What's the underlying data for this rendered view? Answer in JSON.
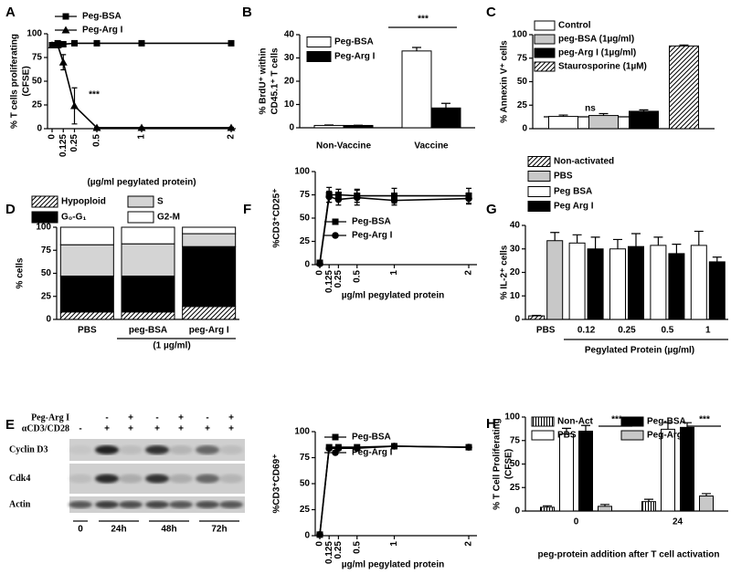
{
  "chart_data": [
    {
      "panel": "A",
      "type": "line",
      "ylabel": [
        "% T cells proliferating",
        "(CFSE)"
      ],
      "xlabel": "(µg/ml pegylated protein)",
      "x": [
        0,
        0.0625,
        0.125,
        0.25,
        0.5,
        1,
        2
      ],
      "xlim": [
        0,
        2
      ],
      "xticks": [
        0,
        0.125,
        0.25,
        0.5,
        1,
        2
      ],
      "ylim": [
        0,
        100
      ],
      "yticks": [
        0,
        25,
        50,
        75,
        100
      ],
      "series": [
        {
          "name": "Peg-BSA",
          "color": "#000000",
          "marker": "square",
          "values": [
            88,
            90,
            89,
            90,
            90,
            90,
            90
          ]
        },
        {
          "name": "Peg-Arg I",
          "color": "#000000",
          "marker": "triangle",
          "values": [
            88,
            88,
            70,
            24,
            1,
            1,
            1
          ],
          "errors": [
            1,
            1,
            8,
            19,
            0.5,
            0.5,
            0.5
          ]
        }
      ],
      "annotations": [
        "***"
      ]
    },
    {
      "panel": "B",
      "type": "bar",
      "ylabel": [
        "% BrdU⁺ within",
        "CD45.1⁺ T cells"
      ],
      "categories": [
        "Non-Vaccine",
        "Vaccine"
      ],
      "ylim": [
        0,
        40
      ],
      "yticks": [
        0,
        10,
        20,
        30,
        40
      ],
      "series": [
        {
          "name": "Peg-BSA",
          "color": "#ffffff",
          "values": [
            1,
            33
          ],
          "errors": [
            0.2,
            1.5
          ]
        },
        {
          "name": "Peg-Arg I",
          "color": "#000000",
          "values": [
            1,
            8.5
          ],
          "errors": [
            0.1,
            2
          ]
        }
      ],
      "annotations": [
        "***"
      ]
    },
    {
      "panel": "C",
      "type": "bar",
      "ylabel": [
        "% Annexin V⁺ cells"
      ],
      "categories": [
        null
      ],
      "ylim": [
        0,
        100
      ],
      "yticks": [
        0,
        25,
        50,
        75,
        100
      ],
      "series": [
        {
          "name": "Control",
          "color": "#ffffff",
          "values": [
            13
          ],
          "errors": [
            1.5
          ]
        },
        {
          "name": "peg-BSA (1µg/ml)",
          "color": "#c8c8c8",
          "values": [
            14
          ],
          "errors": [
            2
          ]
        },
        {
          "name": "peg-Arg I (1µg/ml)",
          "color": "#000000",
          "values": [
            18.5
          ],
          "errors": [
            1.5
          ]
        },
        {
          "name": "Staurosporine (1µM)",
          "color": "#ffffff",
          "hatch": "diag",
          "values": [
            88
          ],
          "errors": [
            1
          ]
        }
      ],
      "annotations": [
        "ns"
      ]
    },
    {
      "panel": "D",
      "type": "bar",
      "stacked": true,
      "ylabel": [
        "% cells"
      ],
      "categories": [
        "PBS",
        "peg-BSA",
        "peg-Arg I"
      ],
      "category_note": "(1 µg/ml)",
      "ylim": [
        0,
        100
      ],
      "yticks": [
        0,
        25,
        50,
        75,
        100
      ],
      "series": [
        {
          "name": "Hypoploid",
          "color": "#ffffff",
          "hatch": "diag",
          "values": [
            8,
            8,
            14
          ]
        },
        {
          "name": "G₀-G₁",
          "color": "#000000",
          "values": [
            39,
            39,
            65
          ]
        },
        {
          "name": "S",
          "color": "#d4d4d4",
          "values": [
            34,
            35,
            14
          ]
        },
        {
          "name": "G2-M",
          "color": "#ffffff",
          "values": [
            19,
            18,
            7
          ]
        }
      ]
    },
    {
      "panel": "F",
      "type": "line",
      "ylabel": [
        "%CD3⁺CD25⁺"
      ],
      "xlabel": "µg/ml pegylated protein",
      "x": [
        0,
        0.125,
        0.25,
        0.5,
        1,
        2
      ],
      "xlim": [
        0,
        2
      ],
      "xticks": [
        0,
        0.125,
        0.25,
        0.5,
        1,
        2
      ],
      "ylim": [
        0,
        100
      ],
      "yticks": [
        0,
        25,
        50,
        75,
        100
      ],
      "series": [
        {
          "name": "Peg-BSA",
          "color": "#000000",
          "marker": "square",
          "values": [
            2,
            75,
            75,
            74,
            74,
            74
          ],
          "errors": [
            1,
            8,
            6,
            7,
            8,
            8
          ]
        },
        {
          "name": "Peg-Arg I",
          "color": "#000000",
          "marker": "circle",
          "values": [
            1,
            73,
            70,
            72,
            69,
            71
          ],
          "errors": [
            0.5,
            6,
            6,
            8,
            5,
            6
          ]
        }
      ]
    },
    {
      "panel": "G",
      "type": "bar",
      "ylabel": [
        "% IL-2⁺ cells"
      ],
      "xlabel": "Pegylated Protein (µg/ml)",
      "categories": [
        "PBS",
        "0.12",
        "0.25",
        "0.5",
        "1"
      ],
      "ylim": [
        0,
        40
      ],
      "yticks": [
        0,
        10,
        20,
        30,
        40
      ],
      "series": [
        {
          "name": "Non-activated",
          "color": "#ffffff",
          "hatch": "diag",
          "values": [
            1.5,
            null,
            null,
            null,
            null
          ],
          "errors": [
            0.2,
            null,
            null,
            null,
            null
          ]
        },
        {
          "name": "PBS",
          "color": "#c8c8c8",
          "values": [
            33.5,
            null,
            null,
            null,
            null
          ],
          "errors": [
            3.5,
            null,
            null,
            null,
            null
          ]
        },
        {
          "name": "Peg BSA",
          "color": "#ffffff",
          "values": [
            null,
            32.5,
            30,
            31.5,
            31.5
          ],
          "errors": [
            null,
            3.5,
            4,
            3.5,
            6
          ]
        },
        {
          "name": "Peg Arg I",
          "color": "#000000",
          "values": [
            null,
            30,
            31,
            28,
            24.5
          ],
          "errors": [
            null,
            5,
            5.5,
            4,
            2
          ]
        }
      ]
    },
    {
      "type": "line",
      "ylabel": [
        "%CD3⁺CD69⁺"
      ],
      "xlabel": "µg/ml pegylated protein",
      "x": [
        0,
        0.125,
        0.25,
        0.5,
        1,
        2
      ],
      "xlim": [
        0,
        2
      ],
      "xticks": [
        0,
        0.125,
        0.25,
        0.5,
        1,
        2
      ],
      "ylim": [
        0,
        100
      ],
      "yticks": [
        0,
        25,
        50,
        75,
        100
      ],
      "series": [
        {
          "name": "Peg-BSA",
          "color": "#000000",
          "marker": "square",
          "values": [
            1,
            85,
            85,
            85,
            86,
            85
          ],
          "errors": [
            0.5,
            2,
            2,
            2,
            1,
            1
          ]
        },
        {
          "name": "Peg-Arg I",
          "color": "#000000",
          "marker": "circle",
          "values": [
            1,
            84,
            84,
            84,
            86,
            85
          ],
          "errors": [
            0.5,
            2,
            2,
            2,
            1,
            1
          ]
        }
      ]
    },
    {
      "panel": "H",
      "type": "bar",
      "ylabel": [
        "% T Cell Proliferating",
        "(CFSE)"
      ],
      "xlabel": "peg-protein addition after T cell activation",
      "categories": [
        "0",
        "24"
      ],
      "ylim": [
        0,
        100
      ],
      "yticks": [
        0,
        25,
        50,
        75,
        100
      ],
      "series": [
        {
          "name": "Non-Act",
          "color": "#ffffff",
          "hatch": "vert",
          "values": [
            4,
            10
          ],
          "errors": [
            1.5,
            2.5
          ]
        },
        {
          "name": "PBS",
          "color": "#ffffff",
          "values": [
            82,
            87
          ],
          "errors": [
            6,
            7
          ]
        },
        {
          "name": "Peg-BSA",
          "color": "#000000",
          "values": [
            85,
            89
          ],
          "errors": [
            6,
            5
          ]
        },
        {
          "name": "Peg-Arg I",
          "color": "#c8c8c8",
          "values": [
            5,
            16
          ],
          "errors": [
            2,
            2.5
          ]
        }
      ],
      "annotations": [
        "***",
        "***"
      ]
    }
  ],
  "blot": {
    "panel": "E",
    "treatments": [
      {
        "label": "Peg-Arg I",
        "signs": [
          null,
          "-",
          "+",
          "-",
          "+",
          "-",
          "+"
        ]
      },
      {
        "label": "αCD3/CD28",
        "signs": [
          "-",
          "+",
          "+",
          "+",
          "+",
          "+",
          "+"
        ]
      }
    ],
    "rows": [
      "Cyclin D3",
      "Cdk4",
      "Actin"
    ],
    "times": [
      "0",
      "24h",
      "48h",
      "72h"
    ]
  }
}
